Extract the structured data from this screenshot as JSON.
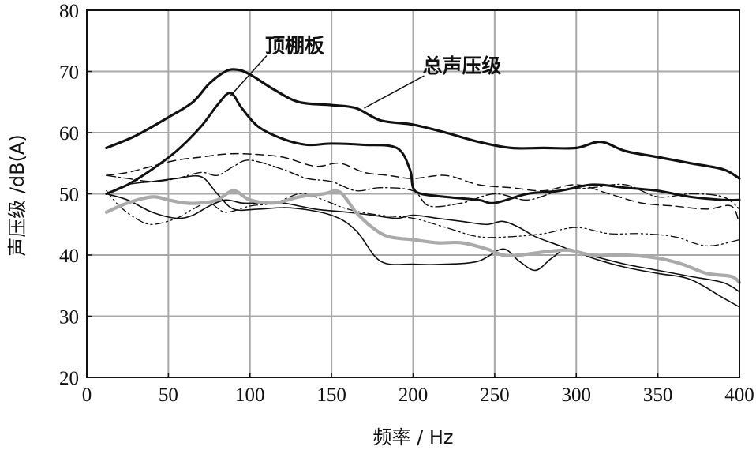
{
  "chart_data": {
    "type": "line",
    "xlabel": "频率 / Hz",
    "ylabel": "声压级 /dB(A)",
    "xlim": [
      0,
      400
    ],
    "ylim": [
      20,
      80
    ],
    "xticks": [
      0,
      50,
      100,
      150,
      200,
      250,
      300,
      350,
      400
    ],
    "yticks": [
      20,
      30,
      40,
      50,
      60,
      70,
      80
    ],
    "grid": true,
    "annotations": [
      {
        "text": "顶棚板",
        "series_index": 1,
        "at": [
          88,
          66
        ]
      },
      {
        "text": "总声压级",
        "series_index": 0,
        "at": [
          170,
          64
        ]
      }
    ],
    "series": [
      {
        "color": "#111111",
        "width": 3.2,
        "dash": "",
        "x": [
          12,
          30,
          50,
          65,
          75,
          85,
          92,
          100,
          115,
          130,
          150,
          165,
          180,
          200,
          220,
          240,
          260,
          280,
          300,
          315,
          330,
          350,
          370,
          390,
          400
        ],
        "y": [
          57.5,
          59.5,
          62.5,
          65,
          68,
          70,
          70.3,
          69.5,
          67,
          65,
          64.5,
          64,
          62,
          61.3,
          60,
          58.5,
          57.5,
          57.5,
          57.5,
          58.5,
          57,
          56,
          55,
          54,
          52.5
        ]
      },
      {
        "color": "#111111",
        "width": 3,
        "dash": "",
        "x": [
          12,
          25,
          40,
          55,
          70,
          80,
          88,
          95,
          105,
          120,
          135,
          150,
          170,
          190,
          198,
          200,
          205,
          220,
          240,
          250,
          270,
          290,
          310,
          330,
          350,
          370,
          390,
          400
        ],
        "y": [
          50,
          51.5,
          54,
          57,
          61,
          64.5,
          66.5,
          64,
          61,
          59,
          58,
          58.2,
          58,
          57.5,
          54,
          51,
          50,
          49.5,
          49,
          48.5,
          50,
          50.5,
          51.5,
          51,
          50.5,
          49.5,
          49,
          49
        ]
      },
      {
        "color": "#111111",
        "width": 1.5,
        "dash": "10,6",
        "x": [
          12,
          25,
          40,
          55,
          70,
          85,
          100,
          120,
          140,
          155,
          170,
          185,
          200,
          220,
          240,
          260,
          280,
          300,
          320,
          340,
          360,
          380,
          395,
          400
        ],
        "y": [
          53,
          53.5,
          54.5,
          55.5,
          56,
          56.5,
          56.5,
          56,
          54.5,
          55,
          53.5,
          53,
          52.5,
          53,
          51.5,
          51,
          50.5,
          51.5,
          50,
          48.5,
          48,
          47.5,
          48,
          45
        ]
      },
      {
        "color": "#111111",
        "width": 1.4,
        "dash": "12,4,2,4",
        "x": [
          12,
          25,
          40,
          55,
          70,
          80,
          90,
          100,
          120,
          135,
          150,
          165,
          180,
          200,
          210,
          230,
          250,
          270,
          290,
          310,
          330,
          350,
          370,
          390,
          400
        ],
        "y": [
          53,
          52.5,
          52,
          52.5,
          53.5,
          53,
          54.5,
          55.5,
          54,
          52.5,
          52,
          50.5,
          51,
          50.5,
          48,
          48.5,
          50,
          49,
          50.5,
          51,
          51.5,
          49.5,
          50,
          49.5,
          47.5
        ]
      },
      {
        "color": "#111111",
        "width": 1.3,
        "dash": "10,4,2,4,2,4",
        "x": [
          12,
          20,
          30,
          40,
          55,
          65,
          75,
          85,
          100,
          115,
          130,
          140,
          160,
          180,
          200,
          220,
          240,
          260,
          280,
          300,
          320,
          340,
          360,
          380,
          400
        ],
        "y": [
          50.5,
          48,
          46,
          45,
          46,
          47.5,
          48.5,
          47,
          48,
          48.5,
          50,
          49.5,
          47.5,
          46.5,
          46,
          44.5,
          43,
          43,
          43.5,
          44.5,
          43.5,
          43.5,
          43,
          41.5,
          42.5
        ]
      },
      {
        "color": "#111111",
        "width": 1.6,
        "dash": "",
        "x": [
          12,
          25,
          40,
          55,
          65,
          75,
          85,
          95,
          105,
          120,
          140,
          160,
          175,
          190,
          200,
          215,
          230,
          245,
          255,
          265,
          275,
          290,
          300,
          315,
          330,
          350,
          370,
          390,
          400
        ],
        "y": [
          50,
          49,
          47,
          46,
          46.5,
          48,
          49,
          48.5,
          48.5,
          48.5,
          47.5,
          47,
          46.5,
          46,
          46.5,
          46,
          45.5,
          45,
          45.5,
          44.5,
          43,
          41.5,
          40.5,
          39.5,
          38.5,
          37.5,
          36.5,
          35.5,
          34
        ]
      },
      {
        "color": "#111111",
        "width": 1.6,
        "dash": "",
        "x": [
          12,
          25,
          40,
          55,
          70,
          80,
          90,
          105,
          125,
          150,
          165,
          180,
          200,
          220,
          240,
          255,
          265,
          275,
          285,
          295,
          310,
          330,
          350,
          370,
          390,
          400
        ],
        "y": [
          50,
          51.5,
          52,
          52.5,
          52.8,
          50,
          47.5,
          47.5,
          47.7,
          46.5,
          44,
          39,
          38.5,
          38.5,
          39,
          41,
          39,
          37.5,
          39.5,
          41,
          39.5,
          38,
          37,
          36,
          33,
          31.5
        ]
      },
      {
        "color": "#aaaaaa",
        "width": 4.2,
        "dash": "",
        "x": [
          12,
          25,
          40,
          50,
          60,
          70,
          80,
          90,
          100,
          115,
          130,
          145,
          155,
          165,
          175,
          185,
          200,
          215,
          230,
          245,
          255,
          265,
          280,
          295,
          310,
          330,
          350,
          365,
          380,
          395,
          400
        ],
        "y": [
          47,
          48.5,
          49.5,
          49,
          48.5,
          48.5,
          49,
          50.5,
          49,
          48.5,
          49.5,
          50,
          50.3,
          47,
          44.5,
          43,
          42.5,
          42,
          42,
          41,
          40,
          40,
          40.5,
          40.8,
          40,
          40,
          39.5,
          38.5,
          37,
          36.5,
          35.5
        ]
      }
    ]
  }
}
